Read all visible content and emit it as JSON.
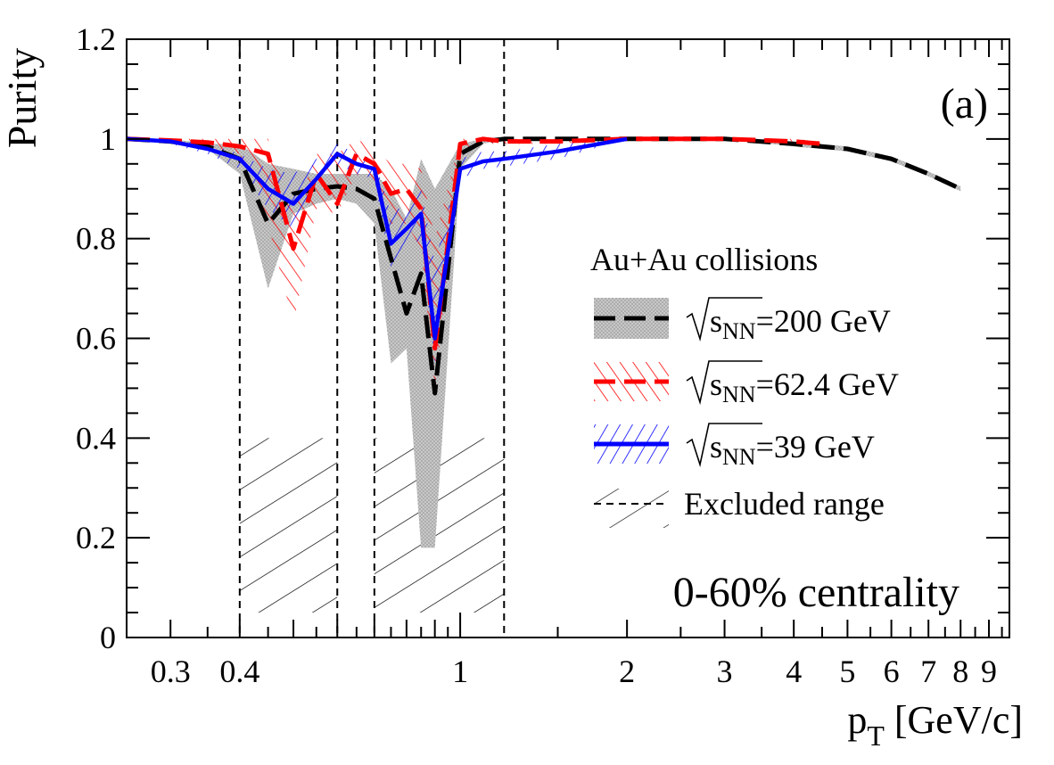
{
  "chart_data": {
    "type": "line",
    "ylabel": "Purity",
    "xlabel_main": "p",
    "xlabel_sub": "T",
    "xlabel_unit": " [GeV/c]",
    "panel_label": "(a)",
    "annotation": "0-60% centrality",
    "x_scale": "log",
    "xlim": [
      0.25,
      9.8
    ],
    "ylim": [
      0,
      1.2
    ],
    "x_tick_labels": [
      "0.3",
      "0.4",
      "1",
      "2",
      "3",
      "4",
      "5",
      "6",
      "7",
      "8",
      "9"
    ],
    "y_tick_labels": [
      "0",
      "0.2",
      "0.4",
      "0.6",
      "0.8",
      "1",
      "1.2"
    ],
    "legend": {
      "title": "Au+Au collisions",
      "entries": [
        {
          "sqrt_label": "s",
          "sub": "NN",
          "value": "=200 GeV"
        },
        {
          "sqrt_label": "s",
          "sub": "NN",
          "value": "=62.4 GeV"
        },
        {
          "sqrt_label": "s",
          "sub": "NN",
          "value": "=39 GeV"
        },
        {
          "label": "Excluded range"
        }
      ],
      "position": "right"
    },
    "colors": {
      "s200": "#000000",
      "s200_band": "#b5b5b5",
      "s62": "#ff0000",
      "s39": "#0000ff",
      "excluded": "#000000"
    },
    "excluded_ranges": [
      [
        0.4,
        0.6
      ],
      [
        0.7,
        1.2
      ]
    ],
    "series": [
      {
        "key": "s200",
        "x": [
          0.25,
          0.3,
          0.35,
          0.4,
          0.45,
          0.5,
          0.55,
          0.6,
          0.65,
          0.7,
          0.75,
          0.8,
          0.85,
          0.9,
          1.0,
          1.1,
          1.2,
          1.5,
          2.0,
          3.0,
          4.0,
          5.0,
          6.0,
          7.0,
          8.0
        ],
        "y": [
          1.0,
          0.995,
          0.985,
          0.96,
          0.83,
          0.89,
          0.9,
          0.905,
          0.9,
          0.88,
          0.76,
          0.65,
          0.73,
          0.49,
          0.97,
          0.995,
          1.0,
          1.0,
          1.0,
          1.0,
          0.99,
          0.98,
          0.96,
          0.93,
          0.9
        ],
        "band_upper": [
          1.0,
          1.0,
          0.99,
          0.99,
          0.95,
          0.94,
          0.93,
          0.93,
          0.93,
          0.93,
          0.9,
          0.84,
          0.96,
          0.9,
          0.99,
          1.0,
          1.0,
          1.0,
          1.0,
          1.0,
          0.995,
          0.985,
          0.965,
          0.935,
          0.905
        ],
        "band_lower": [
          1.0,
          0.99,
          0.98,
          0.93,
          0.7,
          0.85,
          0.87,
          0.88,
          0.87,
          0.83,
          0.55,
          0.58,
          0.18,
          0.18,
          0.94,
          0.99,
          1.0,
          1.0,
          1.0,
          1.0,
          0.985,
          0.975,
          0.955,
          0.925,
          0.895
        ]
      },
      {
        "key": "s62",
        "x": [
          0.25,
          0.3,
          0.35,
          0.4,
          0.45,
          0.5,
          0.55,
          0.6,
          0.65,
          0.7,
          0.75,
          0.8,
          0.85,
          0.9,
          1.0,
          1.1,
          1.2,
          1.5,
          2.0,
          3.0,
          4.0,
          4.5
        ],
        "y": [
          1.0,
          0.997,
          0.993,
          0.985,
          0.97,
          0.78,
          0.93,
          0.87,
          0.97,
          0.95,
          0.89,
          0.9,
          0.86,
          0.58,
          0.99,
          1.0,
          0.995,
          0.995,
          1.0,
          1.0,
          0.995,
          0.99
        ],
        "band_upper": [
          1.0,
          1.0,
          1.0,
          1.0,
          1.0,
          0.85,
          0.97,
          0.97,
          1.0,
          0.98,
          0.95,
          0.95,
          0.94,
          0.8,
          1.0,
          1.0,
          1.0,
          1.0,
          1.0,
          1.0,
          1.0,
          0.995
        ],
        "band_lower": [
          1.0,
          0.995,
          0.985,
          0.97,
          0.83,
          0.63,
          0.86,
          0.85,
          0.93,
          0.91,
          0.83,
          0.83,
          0.78,
          0.5,
          0.97,
          0.99,
          0.99,
          0.99,
          1.0,
          1.0,
          0.99,
          0.985
        ]
      },
      {
        "key": "s39",
        "x": [
          0.25,
          0.3,
          0.35,
          0.4,
          0.45,
          0.5,
          0.55,
          0.6,
          0.65,
          0.7,
          0.75,
          0.8,
          0.85,
          0.9,
          1.0,
          1.1,
          1.2,
          1.5,
          2.0
        ],
        "y": [
          1.0,
          0.995,
          0.98,
          0.96,
          0.9,
          0.87,
          0.92,
          0.97,
          0.95,
          0.94,
          0.79,
          0.82,
          0.85,
          0.6,
          0.94,
          0.955,
          0.96,
          0.975,
          1.0
        ],
        "band_upper": [
          1.0,
          1.0,
          0.99,
          0.97,
          0.94,
          0.93,
          0.96,
          0.99,
          0.97,
          0.96,
          0.85,
          0.87,
          0.9,
          0.75,
          0.96,
          0.975,
          0.975,
          0.99,
          1.0
        ],
        "band_lower": [
          1.0,
          0.99,
          0.97,
          0.94,
          0.86,
          0.82,
          0.89,
          0.95,
          0.93,
          0.92,
          0.74,
          0.78,
          0.8,
          0.55,
          0.92,
          0.94,
          0.945,
          0.96,
          1.0
        ]
      }
    ]
  }
}
